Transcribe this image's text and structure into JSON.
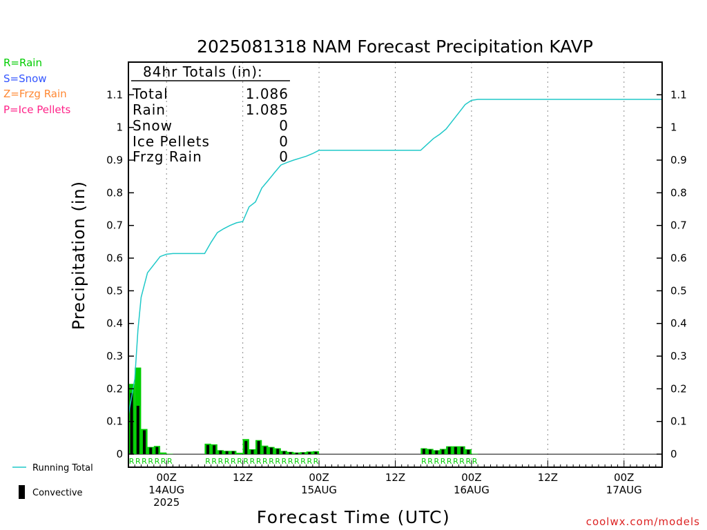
{
  "legend": {
    "types": [
      {
        "label": "R=Rain",
        "color": "#00cc00"
      },
      {
        "label": "S=Snow",
        "color": "#3355ff"
      },
      {
        "label": "Z=Frzg Rain",
        "color": "#ff8833"
      },
      {
        "label": "P=Ice Pellets",
        "color": "#ff2288"
      }
    ],
    "running_total_label": "Running Total",
    "convective_label": "Convective"
  },
  "totals": {
    "header": "84hr Totals (in):",
    "rows": [
      {
        "label": "Total",
        "value": "1.086"
      },
      {
        "label": "Rain",
        "value": "1.085"
      },
      {
        "label": "Snow",
        "value": "0"
      },
      {
        "label": "Ice Pellets",
        "value": "0"
      },
      {
        "label": "Frzg Rain",
        "value": "0"
      }
    ]
  },
  "credit": "coolwx.com/models",
  "colors": {
    "rain": "#00cc00",
    "convective": "#000000",
    "running_total": "#1ec8c8",
    "credit": "#dd2222"
  },
  "chart_data": {
    "type": "bar",
    "title": "2025081318 NAM Forecast Precipitation KAVP",
    "xlabel": "Forecast Time (UTC)",
    "ylabel": "Precipitation (in)",
    "x_unit": "forecast hour",
    "xlim": [
      0,
      84
    ],
    "ylim": [
      -0.04,
      1.2
    ],
    "y_ticks": [
      0,
      0.1,
      0.2,
      0.3,
      0.4,
      0.5,
      0.6,
      0.7,
      0.8,
      0.9,
      1,
      1.1
    ],
    "y_tick_labels": [
      "0",
      "0.1",
      "0.2",
      "0.3",
      "0.4",
      "0.5",
      "0.6",
      "0.7",
      "0.8",
      "0.9",
      "1",
      "1.1"
    ],
    "x_ticks": [
      {
        "hour": 6,
        "lines": [
          "00Z",
          "14AUG",
          "2025"
        ]
      },
      {
        "hour": 18,
        "lines": [
          "12Z"
        ]
      },
      {
        "hour": 30,
        "lines": [
          "00Z",
          "15AUG"
        ]
      },
      {
        "hour": 42,
        "lines": [
          "12Z"
        ]
      },
      {
        "hour": 54,
        "lines": [
          "00Z",
          "16AUG"
        ]
      },
      {
        "hour": 66,
        "lines": [
          "12Z"
        ]
      },
      {
        "hour": 78,
        "lines": [
          "00Z",
          "17AUG"
        ]
      }
    ],
    "grid": "vertical dotted at tick hours",
    "series": [
      {
        "name": "Rain",
        "type": "bar",
        "x": [
          0.5,
          1.5,
          2.5,
          3.5,
          4.5,
          5.5,
          6.5,
          12.5,
          13.5,
          14.5,
          15.5,
          16.5,
          17.5,
          18.5,
          19.5,
          20.5,
          21.5,
          22.5,
          23.5,
          24.5,
          25.5,
          26.5,
          27.5,
          28.5,
          29.5,
          46.5,
          47.5,
          48.5,
          49.5,
          50.5,
          51.5,
          52.5,
          53.5,
          54.5
        ],
        "values": [
          0.215,
          0.265,
          0.077,
          0.022,
          0.025,
          0.005,
          0.001,
          0.032,
          0.03,
          0.012,
          0.01,
          0.01,
          0.004,
          0.046,
          0.015,
          0.043,
          0.026,
          0.022,
          0.018,
          0.01,
          0.007,
          0.005,
          0.006,
          0.008,
          0.009,
          0.018,
          0.016,
          0.012,
          0.016,
          0.024,
          0.024,
          0.024,
          0.015,
          0.001
        ]
      },
      {
        "name": "Convective",
        "type": "bar",
        "x": [
          0.5,
          1.5,
          2.5,
          3.5,
          4.5,
          12.5,
          13.5,
          14.5,
          15.5,
          16.5,
          18.5,
          19.5,
          20.5,
          21.5,
          22.5,
          23.5,
          24.5,
          25.5,
          26.5,
          27.5,
          28.5,
          29.5,
          46.5,
          47.5,
          48.5,
          49.5,
          50.5,
          51.5,
          52.5,
          53.5
        ],
        "values": [
          0.187,
          0.148,
          0.073,
          0.02,
          0.022,
          0.028,
          0.027,
          0.011,
          0.009,
          0.009,
          0.04,
          0.013,
          0.04,
          0.023,
          0.02,
          0.016,
          0.009,
          0.006,
          0.004,
          0.005,
          0.006,
          0.007,
          0.016,
          0.014,
          0.011,
          0.014,
          0.022,
          0.022,
          0.022,
          0.013
        ]
      },
      {
        "name": "Running Total",
        "type": "line",
        "x": [
          0,
          1,
          1.5,
          2,
          3,
          5,
          6,
          7,
          12,
          13,
          14,
          15,
          16,
          17,
          18,
          19,
          20,
          21,
          22,
          23,
          24,
          25,
          26,
          27,
          28,
          29,
          30,
          39,
          40,
          41,
          42,
          43,
          44,
          45,
          46,
          47,
          48,
          49,
          50,
          51,
          52,
          53,
          54,
          55,
          84
        ],
        "values": [
          0.12,
          0.23,
          0.38,
          0.48,
          0.555,
          0.605,
          0.612,
          0.614,
          0.614,
          0.648,
          0.678,
          0.69,
          0.7,
          0.708,
          0.712,
          0.757,
          0.772,
          0.815,
          0.838,
          0.862,
          0.885,
          0.893,
          0.9,
          0.906,
          0.912,
          0.92,
          0.93,
          0.93,
          0.93,
          0.93,
          0.93,
          0.93,
          0.93,
          0.93,
          0.93,
          0.948,
          0.966,
          0.979,
          0.995,
          1.02,
          1.045,
          1.07,
          1.083,
          1.086,
          1.086
        ]
      }
    ],
    "bar_annotations": {
      "symbol": "R",
      "hours": [
        1,
        2,
        3,
        4,
        5,
        6,
        7,
        13,
        14,
        15,
        16,
        17,
        18,
        19,
        20,
        21,
        22,
        23,
        24,
        25,
        26,
        27,
        28,
        29,
        30,
        47,
        48,
        49,
        50,
        51,
        52,
        53,
        54,
        55
      ]
    }
  }
}
